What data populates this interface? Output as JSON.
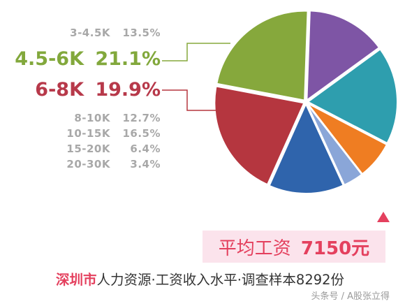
{
  "chart_data": {
    "type": "pie",
    "slices": [
      {
        "label": "3-4.5K",
        "value": 13.5,
        "value_label": "13.5%",
        "color": "#7e55a5"
      },
      {
        "label": "4.5-6K",
        "value": 21.1,
        "value_label": "21.1%",
        "color": "#86a83c"
      },
      {
        "label": "6-8K",
        "value": 19.9,
        "value_label": "19.9%",
        "color": "#b5363f"
      },
      {
        "label": "8-10K",
        "value": 12.7,
        "value_label": "12.7%",
        "color": "#2f64ac"
      },
      {
        "label": "10-15K",
        "value": 16.5,
        "value_label": "16.5%",
        "color": "#2e9eae"
      },
      {
        "label": "15-20K",
        "value": 6.4,
        "value_label": "6.4%",
        "color": "#ef7d22"
      },
      {
        "label": "20-30K",
        "value": 3.4,
        "value_label": "3.4%",
        "color": "#8aa6d8"
      }
    ],
    "highlighted": [
      "4.5-6K",
      "6-8K"
    ],
    "legend_position": "left"
  },
  "summary": {
    "avg_label": "平均工资",
    "avg_value": "7150元",
    "source_city": "深圳市",
    "source_rest": "人力资源·工资收入水平·调查样本8292份"
  },
  "watermark": "头条号 / A股张立得",
  "colors": {
    "accent": "#e4405e",
    "label_gray": "#a8a8a8"
  }
}
